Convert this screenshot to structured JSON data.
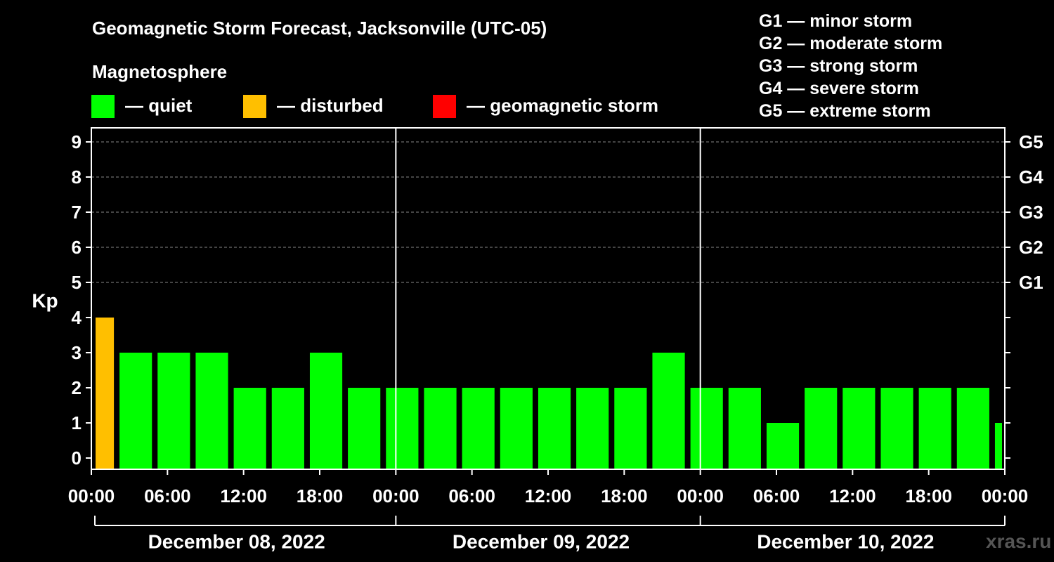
{
  "title": "Geomagnetic Storm Forecast, Jacksonville (UTC-05)",
  "magnetosphere_label": "Magnetosphere",
  "legend": [
    {
      "color": "#00ff00",
      "label": "— quiet"
    },
    {
      "color": "#ffbf00",
      "label": "— disturbed"
    },
    {
      "color": "#ff0000",
      "label": "— geomagnetic storm"
    }
  ],
  "storm_scale": [
    "G1 — minor storm",
    "G2 — moderate storm",
    "G3 — strong storm",
    "G4 — severe storm",
    "G5 — extreme storm"
  ],
  "watermark": "xras.ru",
  "chart_data": {
    "type": "bar",
    "title": "Geomagnetic Storm Forecast, Jacksonville (UTC-05)",
    "ylabel": "Kp",
    "xlabel": "",
    "ylim": [
      0,
      9
    ],
    "y_ticks": [
      "0",
      "1",
      "2",
      "3",
      "4",
      "5",
      "6",
      "7",
      "8",
      "9"
    ],
    "right_axis_labels": [
      {
        "kp": 5,
        "label": "G1"
      },
      {
        "kp": 6,
        "label": "G2"
      },
      {
        "kp": 7,
        "label": "G3"
      },
      {
        "kp": 8,
        "label": "G4"
      },
      {
        "kp": 9,
        "label": "G5"
      }
    ],
    "x_tick_labels": [
      "00:00",
      "06:00",
      "12:00",
      "18:00",
      "00:00",
      "06:00",
      "12:00",
      "18:00",
      "00:00",
      "06:00",
      "12:00",
      "18:00",
      "00:00"
    ],
    "days": [
      "December 08, 2022",
      "December 09, 2022",
      "December 10, 2022"
    ],
    "grid": "dashed horizontal at Kp 5-9",
    "status_colors": {
      "quiet": "#00ff00",
      "disturbed": "#ffbf00",
      "storm": "#ff0000"
    },
    "series": [
      {
        "name": "Kp",
        "values": [
          4,
          3,
          3,
          3,
          2,
          2,
          3,
          2,
          2,
          2,
          2,
          2,
          2,
          2,
          2,
          3,
          2,
          2,
          1,
          2,
          2,
          2,
          2,
          2,
          1
        ],
        "status": [
          "disturbed",
          "quiet",
          "quiet",
          "quiet",
          "quiet",
          "quiet",
          "quiet",
          "quiet",
          "quiet",
          "quiet",
          "quiet",
          "quiet",
          "quiet",
          "quiet",
          "quiet",
          "quiet",
          "quiet",
          "quiet",
          "quiet",
          "quiet",
          "quiet",
          "quiet",
          "quiet",
          "quiet",
          "quiet"
        ]
      }
    ]
  }
}
